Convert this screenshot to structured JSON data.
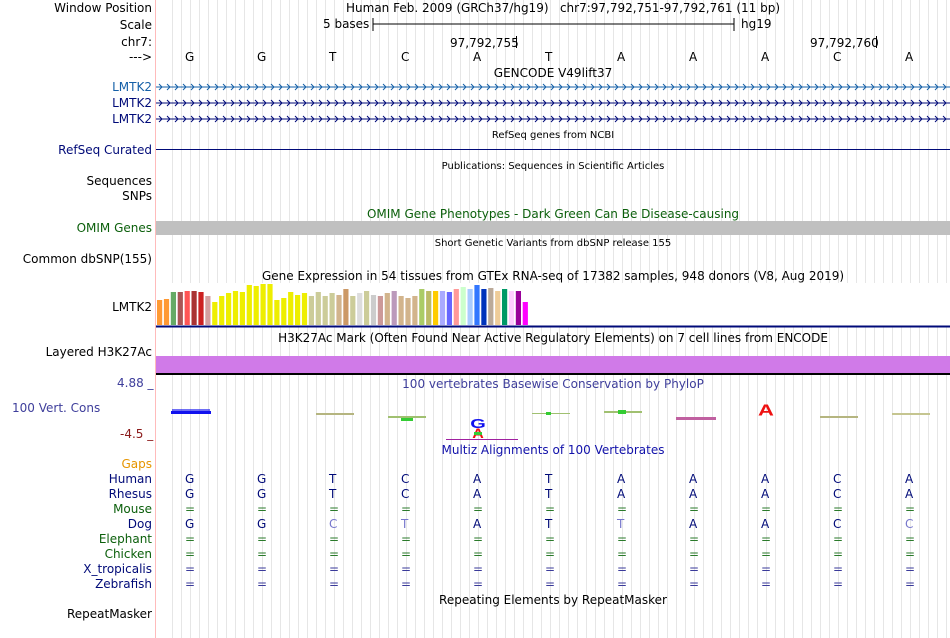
{
  "colors": {
    "grid": "#dddddd",
    "label_border": "#ffbbbb",
    "gencode": "#1560a8",
    "navy": "#000a78",
    "green": "#0b5f0b",
    "gray_bar": "#c0c0c0",
    "h3k": "#d07ae8",
    "logo_red": "#ee1111",
    "logo_blue": "#1111ee",
    "gaps": "#e69500",
    "maroon": "#8b1a1a",
    "phylo": "#3e3e9b",
    "multiz_blue": "#1111aa",
    "match_gray": "#7777cc"
  },
  "header": {
    "window_position_label": "Window Position",
    "window_position_value": "Human Feb. 2009 (GRCh37/hg19)   chr7:97,792,751-97,792,761 (11 bp)",
    "scale_label": "Scale",
    "scale_length": "5 bases",
    "scale_assembly": "hg19",
    "chrom_label": "chr7:",
    "coord1": "97,792,755",
    "coord2": "97,792,760",
    "strand_label": "--->",
    "bases": [
      "G",
      "G",
      "T",
      "C",
      "A",
      "T",
      "A",
      "A",
      "A",
      "C",
      "A"
    ]
  },
  "tracks": {
    "gencode": {
      "title": "GENCODE V49lift37",
      "labels": [
        "LMTK2",
        "LMTK2",
        "LMTK2"
      ]
    },
    "refseq": {
      "title": "RefSeq genes from NCBI",
      "label": "RefSeq Curated"
    },
    "publications": {
      "title": "Publications: Sequences in Scientific Articles",
      "labels": [
        "Sequences",
        "SNPs"
      ]
    },
    "omim": {
      "title": "OMIM Gene Phenotypes - Dark Green Can Be Disease-causing",
      "label": "OMIM Genes"
    },
    "dbsnp": {
      "title": "Short Genetic Variants from dbSNP release 155",
      "label": "Common dbSNP(155)"
    },
    "gtex": {
      "title": "Gene Expression in 54 tissues from GTEx RNA-seq of 17382 samples, 948 donors (V8, Aug 2019)",
      "label": "LMTK2",
      "bars": [
        {
          "v": 0.6,
          "c": "#ff9933"
        },
        {
          "v": 0.62,
          "c": "#ff9933"
        },
        {
          "v": 0.78,
          "c": "#66aa66"
        },
        {
          "v": 0.78,
          "c": "#aa5555"
        },
        {
          "v": 0.82,
          "c": "#ff5555"
        },
        {
          "v": 0.8,
          "c": "#aa3333"
        },
        {
          "v": 0.78,
          "c": "#cc2222"
        },
        {
          "v": 0.7,
          "c": "#d4a0a0"
        },
        {
          "v": 0.55,
          "c": "#eeee00"
        },
        {
          "v": 0.7,
          "c": "#eeee00"
        },
        {
          "v": 0.75,
          "c": "#eeee00"
        },
        {
          "v": 0.82,
          "c": "#eeee00"
        },
        {
          "v": 0.78,
          "c": "#eeee00"
        },
        {
          "v": 0.95,
          "c": "#eeee00"
        },
        {
          "v": 0.92,
          "c": "#eeee00"
        },
        {
          "v": 0.97,
          "c": "#eeee00"
        },
        {
          "v": 0.98,
          "c": "#eeee00"
        },
        {
          "v": 0.6,
          "c": "#eeee00"
        },
        {
          "v": 0.65,
          "c": "#eeee00"
        },
        {
          "v": 0.78,
          "c": "#eeee00"
        },
        {
          "v": 0.72,
          "c": "#eeee00"
        },
        {
          "v": 0.75,
          "c": "#eeee00"
        },
        {
          "v": 0.68,
          "c": "#cccc99"
        },
        {
          "v": 0.78,
          "c": "#cccc99"
        },
        {
          "v": 0.7,
          "c": "#cccc99"
        },
        {
          "v": 0.75,
          "c": "#cccc99"
        },
        {
          "v": 0.72,
          "c": "#d2b48c"
        },
        {
          "v": 0.85,
          "c": "#cc9966"
        },
        {
          "v": 0.7,
          "c": "#cccc99"
        },
        {
          "v": 0.75,
          "c": "#dddddd"
        },
        {
          "v": 0.8,
          "c": "#cccc99"
        },
        {
          "v": 0.72,
          "c": "#cccccc"
        },
        {
          "v": 0.7,
          "c": "#cc9999"
        },
        {
          "v": 0.75,
          "c": "#d2b48c"
        },
        {
          "v": 0.82,
          "c": "#bb99bb"
        },
        {
          "v": 0.68,
          "c": "#d2b48c"
        },
        {
          "v": 0.65,
          "c": "#d2b48c"
        },
        {
          "v": 0.7,
          "c": "#d2b48c"
        },
        {
          "v": 0.85,
          "c": "#aacc66"
        },
        {
          "v": 0.8,
          "c": "#bbbb66"
        },
        {
          "v": 0.82,
          "c": "#ffcc00"
        },
        {
          "v": 0.8,
          "c": "#aaaaff"
        },
        {
          "v": 0.78,
          "c": "#6666ff"
        },
        {
          "v": 0.85,
          "c": "#ff9999"
        },
        {
          "v": 0.9,
          "c": "#ccffcc"
        },
        {
          "v": 0.85,
          "c": "#aaccff"
        },
        {
          "v": 0.95,
          "c": "#3377ff"
        },
        {
          "v": 0.85,
          "c": "#0033bb"
        },
        {
          "v": 0.88,
          "c": "#bbaa99"
        },
        {
          "v": 0.8,
          "c": "#eecc99"
        },
        {
          "v": 0.85,
          "c": "#009966"
        },
        {
          "v": 0.8,
          "c": "#ffccff"
        },
        {
          "v": 0.82,
          "c": "#990099"
        },
        {
          "v": 0.55,
          "c": "#ff00ff"
        }
      ]
    },
    "h3k27ac": {
      "title": "H3K27Ac Mark (Often Found Near Active Regulatory Elements) on 7 cell lines from ENCODE",
      "label": "Layered H3K27Ac"
    },
    "phylop": {
      "title": "100 vertebrates Basewise Conservation by PhyloP",
      "label": "100 Vert. Cons",
      "max": "4.88 _",
      "min": "-4.5 _"
    },
    "multiz": {
      "title": "Multiz Alignments of 100 Vertebrates",
      "gaps_label": "Gaps",
      "species": [
        {
          "name": "Human",
          "color": "#000a78",
          "bases": [
            "G",
            "G",
            "T",
            "C",
            "A",
            "T",
            "A",
            "A",
            "A",
            "C",
            "A"
          ],
          "dim": []
        },
        {
          "name": "Rhesus",
          "color": "#000a78",
          "bases": [
            "G",
            "G",
            "T",
            "C",
            "A",
            "T",
            "A",
            "A",
            "A",
            "C",
            "A"
          ],
          "dim": []
        },
        {
          "name": "Mouse",
          "color": "#0b5f0b",
          "bases": [
            "=",
            "=",
            "=",
            "=",
            "=",
            "=",
            "=",
            "=",
            "=",
            "=",
            "="
          ],
          "dim": []
        },
        {
          "name": "Dog",
          "color": "#000a78",
          "bases": [
            "G",
            "G",
            "C",
            "T",
            "A",
            "T",
            "T",
            "A",
            "A",
            "C",
            "C"
          ],
          "dim": [
            2,
            3,
            6,
            10
          ]
        },
        {
          "name": "Elephant",
          "color": "#0b5f0b",
          "bases": [
            "=",
            "=",
            "=",
            "=",
            "=",
            "=",
            "=",
            "=",
            "=",
            "=",
            "="
          ],
          "dim": []
        },
        {
          "name": "Chicken",
          "color": "#0b5f0b",
          "bases": [
            "=",
            "=",
            "=",
            "=",
            "=",
            "=",
            "=",
            "=",
            "=",
            "=",
            "="
          ],
          "dim": []
        },
        {
          "name": "X_tropicalis",
          "color": "#000a78",
          "bases": [
            "=",
            "=",
            "=",
            "=",
            "=",
            "=",
            "=",
            "=",
            "=",
            "=",
            "="
          ],
          "dim": []
        },
        {
          "name": "Zebrafish",
          "color": "#000a78",
          "bases": [
            "=",
            "=",
            "=",
            "=",
            "=",
            "=",
            "=",
            "=",
            "=",
            "=",
            "="
          ],
          "dim": []
        }
      ]
    },
    "repeatmasker": {
      "title": "Repeating Elements by RepeatMasker",
      "label": "RepeatMasker"
    }
  }
}
